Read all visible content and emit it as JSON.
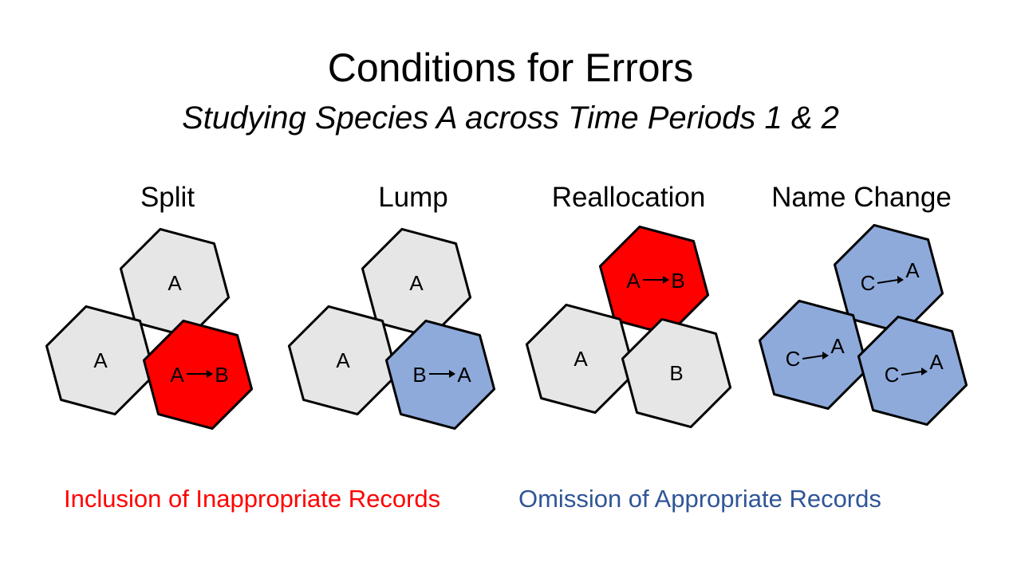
{
  "slide": {
    "title": "Conditions for Errors",
    "subtitle": "Studying Species A across Time Periods 1 & 2"
  },
  "colors": {
    "neutral": "#e6e6e6",
    "inclusion": "#ff0000",
    "omission": "#8eaadb",
    "inclusion_text": "#ff0000",
    "omission_text": "#2f5597",
    "outline": "#000000"
  },
  "panels": [
    {
      "label": "Split",
      "cells": [
        {
          "from": "A",
          "to": "",
          "type": "neutral"
        },
        {
          "from": "A",
          "to": "",
          "type": "neutral"
        },
        {
          "from": "A",
          "to": "B",
          "type": "inclusion"
        }
      ]
    },
    {
      "label": "Lump",
      "cells": [
        {
          "from": "A",
          "to": "",
          "type": "neutral"
        },
        {
          "from": "A",
          "to": "",
          "type": "neutral"
        },
        {
          "from": "B",
          "to": "A",
          "type": "omission"
        }
      ]
    },
    {
      "label": "Reallocation",
      "cells": [
        {
          "from": "A",
          "to": "B",
          "type": "inclusion"
        },
        {
          "from": "A",
          "to": "",
          "type": "neutral"
        },
        {
          "from": "B",
          "to": "",
          "type": "neutral"
        }
      ]
    },
    {
      "label": "Name Change",
      "cells": [
        {
          "from": "C",
          "to": "A",
          "type": "omission"
        },
        {
          "from": "C",
          "to": "A",
          "type": "omission"
        },
        {
          "from": "C",
          "to": "A",
          "type": "omission"
        }
      ]
    }
  ],
  "legend": {
    "inclusion": "Inclusion of Inappropriate Records",
    "omission": "Omission of Appropriate Records"
  }
}
